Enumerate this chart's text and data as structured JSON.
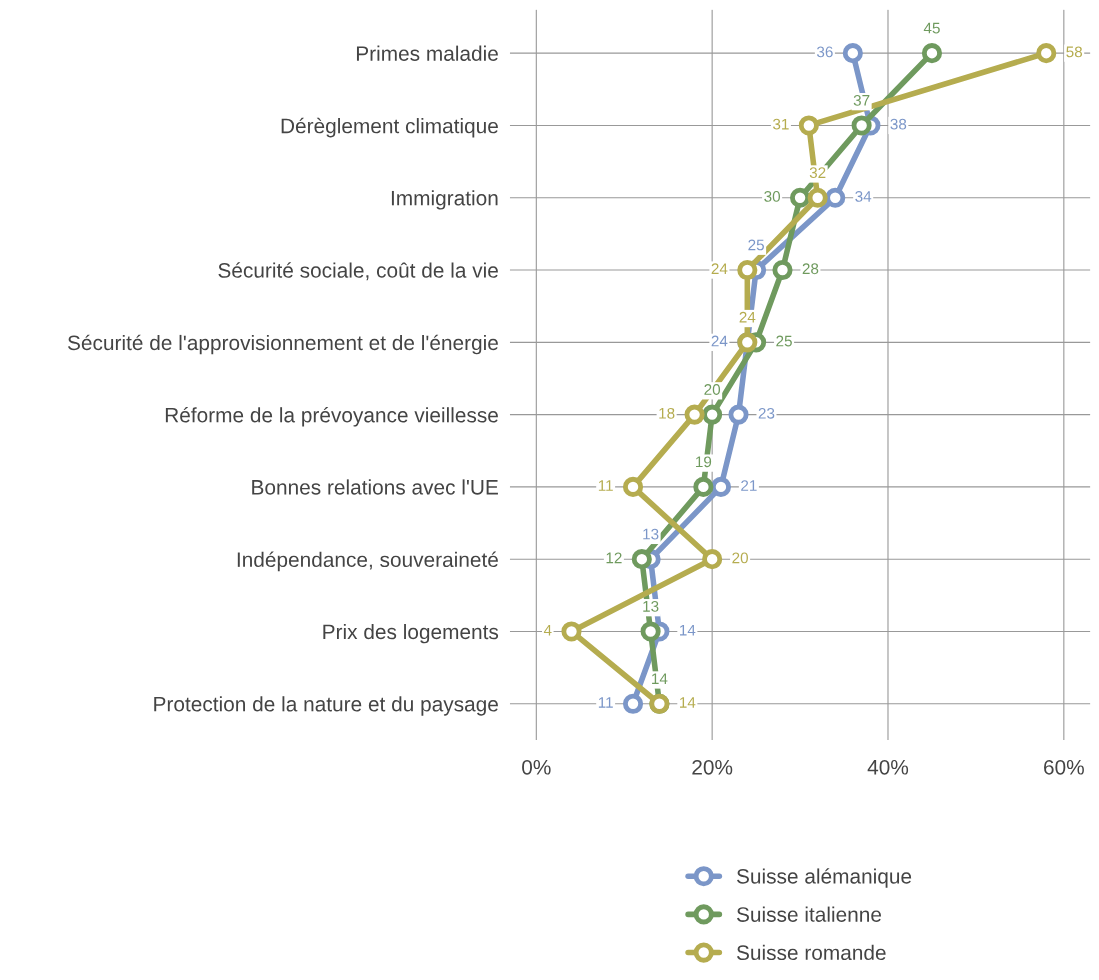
{
  "chart_data": {
    "type": "line",
    "orientation": "horizontal",
    "categories": [
      "Primes maladie",
      "Dérèglement climatique",
      "Immigration",
      "Sécurité sociale, coût de la vie",
      "Sécurité de l'approvisionnement et de l'énergie",
      "Réforme de la prévoyance vieillesse",
      "Bonnes relations avec l'UE",
      "Indépendance, souveraineté",
      "Prix des logements",
      "Protection de la nature et du paysage"
    ],
    "series": [
      {
        "name": "Suisse alémanique",
        "color": "#7b96c8",
        "values": [
          36,
          38,
          34,
          25,
          24,
          23,
          21,
          13,
          14,
          11
        ]
      },
      {
        "name": "Suisse italienne",
        "color": "#6f9a5e",
        "values": [
          45,
          37,
          30,
          28,
          25,
          20,
          19,
          12,
          13,
          14
        ]
      },
      {
        "name": "Suisse romande",
        "color": "#b5ac4f",
        "values": [
          58,
          31,
          32,
          24,
          24,
          18,
          11,
          20,
          4,
          14
        ]
      }
    ],
    "xlim": [
      -3,
      63
    ],
    "xticks": [
      {
        "value": 0,
        "label": "0%"
      },
      {
        "value": 20,
        "label": "20%"
      },
      {
        "value": 40,
        "label": "40%"
      },
      {
        "value": 60,
        "label": "60%"
      }
    ],
    "grid": true,
    "legend": "bottom",
    "marker": "circle",
    "line_style": "solid",
    "data_labels": true
  }
}
